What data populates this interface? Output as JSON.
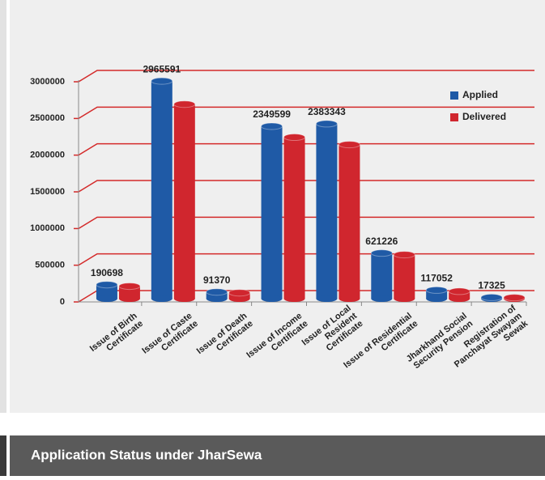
{
  "chart_data": {
    "type": "bar3d",
    "caption": "Application Status under JharSewa",
    "categories": [
      "Issue of Birth\nCertificate",
      "Issue of Caste\nCertificate",
      "Issue of Death\nCertificate",
      "Issue of Income\nCertificate",
      "Issue of Local\nResident\nCertificate",
      "Issue of Residential\nCertificate",
      "Jharkhand Social\nSecurity Pension",
      "Registration of\nPanchayat Swayam\nSewak"
    ],
    "series": [
      {
        "name": "Applied",
        "color": "#1f5aa6",
        "values": [
          190698,
          2965591,
          91370,
          2349599,
          2383343,
          621226,
          117052,
          17325
        ],
        "show_labels": true
      },
      {
        "name": "Delivered",
        "color": "#d0262e",
        "values": [
          170000,
          2650000,
          80000,
          2200000,
          2100000,
          600000,
          100000,
          15000
        ],
        "show_labels": false
      }
    ],
    "ylim": [
      0,
      3000000
    ],
    "yticks": [
      0,
      500000,
      1000000,
      1500000,
      2000000,
      2500000,
      3000000
    ],
    "grid": true,
    "grid_color": "#d42a2a",
    "legend": "upper right"
  }
}
